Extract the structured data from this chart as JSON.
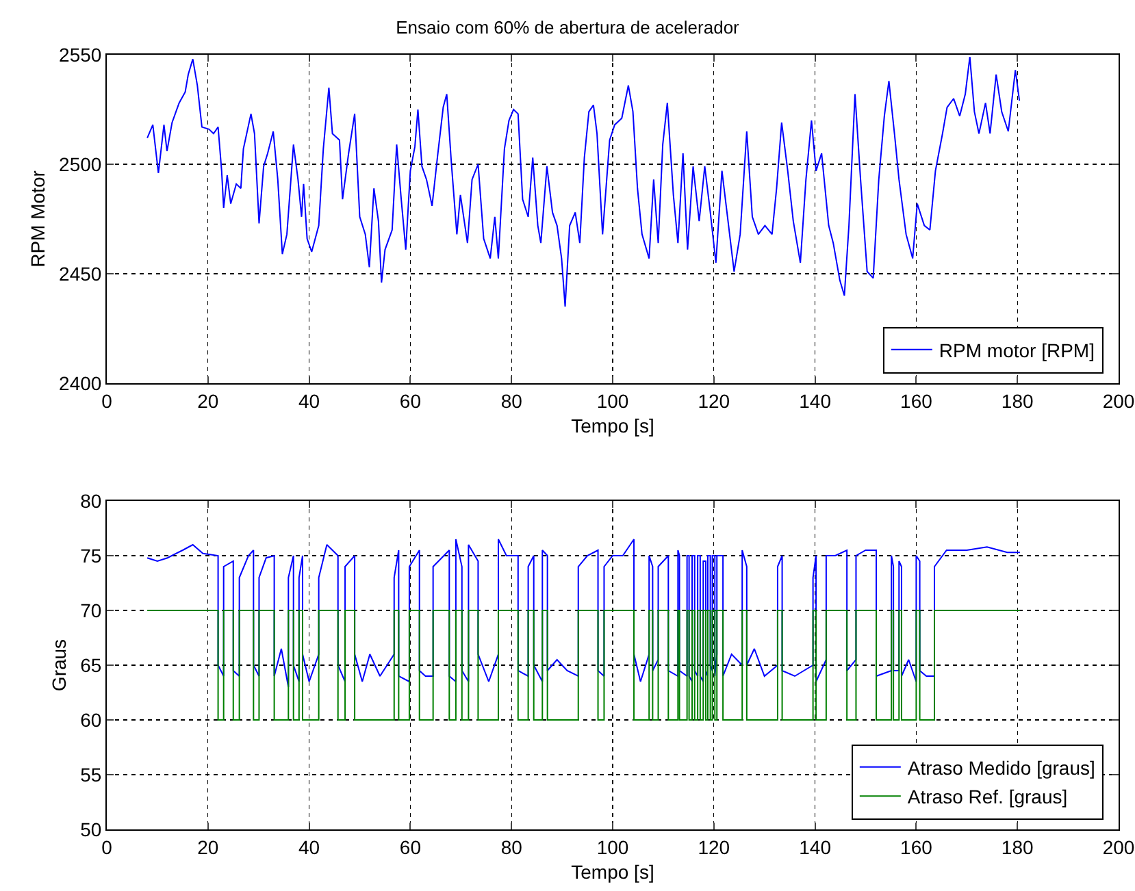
{
  "chart_data": [
    {
      "type": "line",
      "title": "Ensaio com 60% de abertura de acelerador",
      "xlabel": "Tempo [s]",
      "ylabel": "RPM Motor",
      "xlim": [
        0,
        200
      ],
      "xticks": [
        0,
        20,
        40,
        60,
        80,
        100,
        120,
        140,
        160,
        180,
        200
      ],
      "ylim": [
        2400,
        2550
      ],
      "yticks": [
        2400,
        2450,
        2500,
        2550
      ],
      "grid": true,
      "legend": "bottom right",
      "series": [
        {
          "name": "RPM motor [RPM]",
          "color": "#0000ff",
          "x": [
            8.0,
            9.1,
            10.2,
            11.3,
            11.9,
            12.9,
            14.3,
            15.5,
            16.1,
            17.0,
            17.9,
            18.8,
            20.2,
            21.1,
            22,
            22.7,
            23.1,
            23.8,
            24.5,
            25.6,
            26.5,
            27,
            28.5,
            29.2,
            30.1,
            31.0,
            31.8,
            32.9,
            33.8,
            34.7,
            35.6,
            36.9,
            37.8,
            38.5,
            38.9,
            39.6,
            40.5,
            41.9,
            42.8,
            43.9,
            44.6,
            46,
            46.6,
            47.8,
            49,
            50.0,
            51.1,
            51.9,
            52.8,
            53.7,
            54.3,
            55.0,
            56.4,
            57.3,
            58.2,
            59.1,
            60,
            60.9,
            61.5,
            62.3,
            63.2,
            64.3,
            65.4,
            66.5,
            67.2,
            68.1,
            69.2,
            69.9,
            71.3,
            72.2,
            73.4,
            74.5,
            75.8,
            76.7,
            77.4,
            78.6,
            79.5,
            80.4,
            81.3,
            82.2,
            83.3,
            84.2,
            85.2,
            85.8,
            87.0,
            88.1,
            89.0,
            89.9,
            90.6,
            91.5,
            92.6,
            93.5,
            94.4,
            95.3,
            96.2,
            96.9,
            98.0,
            99.4,
            100.4,
            101.8,
            103.1,
            104.0,
            104.9,
            105.8,
            107.2,
            108.1,
            109.0,
            109.9,
            110.8,
            112.0,
            112.9,
            113.9,
            114.8,
            115.9,
            117.1,
            118.2,
            119.3,
            120.4,
            121.6,
            122.7,
            124.0,
            125.2,
            126.5,
            127.6,
            128.8,
            130.1,
            131.5,
            132.4,
            133.4,
            134.6,
            135.7,
            137.1,
            138.2,
            139.3,
            140.2,
            141.3,
            142.7,
            143.6,
            144.9,
            145.8,
            146.7,
            147.9,
            149.0,
            150.3,
            151.5,
            152.6,
            153.7,
            154.6,
            155.7,
            156.6,
            158.0,
            159.3,
            160.2,
            161.6,
            162.7,
            163.8,
            165.2,
            166.1,
            167.4,
            168.6,
            169.7,
            170.6,
            171.5,
            172.4,
            173.7,
            174.6,
            175.8,
            176.9,
            178.2,
            179.6,
            180.4
          ],
          "values": [
            2512,
            2518,
            2496,
            2518,
            2506,
            2519,
            2528,
            2533,
            2541,
            2548,
            2536,
            2517,
            2516,
            2514,
            2517,
            2497,
            2480,
            2495,
            2482,
            2491,
            2489,
            2507,
            2523,
            2514,
            2473,
            2499,
            2505,
            2515,
            2493,
            2459,
            2468,
            2509,
            2493,
            2476,
            2491,
            2466,
            2460,
            2472,
            2507,
            2535,
            2514,
            2511,
            2484,
            2505,
            2523,
            2476,
            2468,
            2453,
            2489,
            2474,
            2446,
            2461,
            2470,
            2509,
            2484,
            2461,
            2497,
            2508,
            2525,
            2499,
            2493,
            2481,
            2504,
            2526,
            2532,
            2501,
            2468,
            2486,
            2464,
            2493,
            2500,
            2466,
            2457,
            2476,
            2457,
            2507,
            2520,
            2525,
            2523,
            2484,
            2476,
            2503,
            2472,
            2464,
            2499,
            2478,
            2472,
            2457,
            2435,
            2472,
            2478,
            2464,
            2503,
            2524,
            2527,
            2514,
            2468,
            2511,
            2518,
            2521,
            2536,
            2524,
            2489,
            2468,
            2457,
            2493,
            2464,
            2509,
            2528,
            2486,
            2464,
            2505,
            2461,
            2499,
            2474,
            2499,
            2478,
            2455,
            2497,
            2476,
            2451,
            2468,
            2515,
            2476,
            2468,
            2472,
            2468,
            2489,
            2519,
            2497,
            2474,
            2455,
            2493,
            2520,
            2497,
            2505,
            2472,
            2464,
            2447,
            2440,
            2472,
            2532,
            2493,
            2451,
            2448,
            2493,
            2522,
            2538,
            2514,
            2493,
            2468,
            2457,
            2482,
            2472,
            2470,
            2497,
            2514,
            2526,
            2530,
            2522,
            2532,
            2549,
            2524,
            2514,
            2528,
            2514,
            2541,
            2524,
            2515,
            2543,
            2529
          ]
        }
      ]
    },
    {
      "type": "line",
      "xlabel": "Tempo [s]",
      "ylabel": "Graus",
      "xlim": [
        0,
        200
      ],
      "xticks": [
        0,
        20,
        40,
        60,
        80,
        100,
        120,
        140,
        160,
        180,
        200
      ],
      "ylim": [
        50,
        80
      ],
      "yticks": [
        50,
        55,
        60,
        65,
        70,
        75,
        80
      ],
      "grid": true,
      "legend": "bottom right",
      "series": [
        {
          "name": "Atraso Medido [graus]",
          "color": "#0000ff",
          "x": [
            8,
            10,
            12,
            15,
            17,
            19,
            22.0,
            22.0,
            23.1,
            23.1,
            25.0,
            25.0,
            26.2,
            26.2,
            28,
            29.0,
            29.0,
            30.1,
            30.1,
            31.5,
            33.1,
            33.1,
            34.5,
            35.9,
            35.9,
            36.9,
            36.9,
            38.0,
            38.0,
            38.7,
            38.7,
            40,
            41.9,
            41.9,
            43.5,
            45.7,
            45.7,
            47.1,
            47.1,
            49.0,
            49.0,
            50.5,
            52,
            54,
            56.8,
            56.8,
            57.7,
            57.7,
            59.8,
            59.8,
            61.8,
            61.8,
            63,
            64.5,
            64.5,
            67.7,
            67.7,
            69.0,
            69.0,
            70.2,
            70.2,
            71.5,
            71.5,
            73.4,
            73.4,
            75.5,
            77.4,
            77.4,
            79,
            81.3,
            81.3,
            83.3,
            83.3,
            84.4,
            84.4,
            86.1,
            86.1,
            87.1,
            87.1,
            89,
            91,
            93.2,
            93.2,
            95,
            97.1,
            97.1,
            98.3,
            98.3,
            100,
            102,
            104.2,
            104.2,
            105.5,
            107.2,
            107.2,
            107.9,
            107.9,
            109.0,
            109.0,
            111.0,
            111.0,
            112.9,
            112.9,
            113.2,
            113.2,
            114.7,
            114.7,
            115.1,
            115.1,
            115.7,
            115.7,
            116.2,
            116.2,
            116.8,
            116.8,
            117.3,
            117.3,
            117.9,
            117.9,
            118.4,
            118.4,
            118.8,
            118.8,
            119.3,
            119.3,
            119.7,
            119.7,
            120.2,
            120.2,
            120.6,
            120.6,
            121.8,
            121.8,
            123.5,
            125.6,
            125.6,
            126.5,
            126.5,
            128,
            130,
            132.6,
            132.6,
            133.5,
            133.5,
            136,
            139.6,
            139.6,
            140.2,
            140.2,
            142.2,
            142.2,
            144,
            146.3,
            146.3,
            148.1,
            148.1,
            150,
            152.1,
            152.1,
            155.1,
            155.1,
            155.5,
            155.5,
            156.6,
            156.6,
            157.1,
            157.1,
            158.5,
            160.0,
            160.0,
            160.7,
            160.7,
            162,
            163.6,
            163.6,
            166,
            170,
            174,
            178,
            180.5
          ],
          "values": [
            74.8,
            74.5,
            74.8,
            75.5,
            76,
            75.2,
            75,
            65,
            64,
            74,
            74.5,
            64.5,
            64,
            73,
            75,
            75.5,
            65,
            64,
            73,
            74.8,
            75,
            64,
            66.5,
            63,
            73,
            75,
            65,
            63.5,
            73,
            75,
            66,
            63.5,
            66,
            73,
            76,
            75,
            65,
            63.5,
            74,
            75,
            66,
            63.5,
            66,
            64,
            66,
            73,
            75.5,
            64,
            63.5,
            74,
            75.5,
            64.5,
            64,
            64,
            74,
            75.5,
            64,
            63.5,
            76.5,
            74,
            64.5,
            63.5,
            76,
            74.5,
            66,
            63.5,
            66,
            76.5,
            75,
            75,
            64.5,
            64,
            74,
            75,
            65,
            63.5,
            75.5,
            75,
            64.5,
            65.5,
            64.5,
            64,
            74,
            75,
            75.5,
            64.5,
            64,
            74,
            75,
            75,
            76.5,
            66,
            63.5,
            66,
            75,
            74,
            64.5,
            65.5,
            74,
            75,
            64.5,
            64,
            75.5,
            75,
            64.5,
            64,
            75,
            75,
            64,
            63.5,
            75,
            75,
            64.5,
            64,
            75,
            75,
            64,
            63.5,
            74.5,
            74.5,
            64.5,
            64,
            75,
            75,
            65,
            64.5,
            75,
            75,
            64,
            66,
            75,
            75,
            64,
            66,
            65,
            75.5,
            74,
            65,
            66.5,
            64,
            65,
            74,
            75,
            64.5,
            64,
            65,
            73,
            75,
            63.5,
            65.5,
            75,
            75,
            75.5,
            64.5,
            65.5,
            75,
            75.5,
            75.5,
            64,
            64.5,
            75,
            74,
            64.5,
            64.5,
            74.5,
            74,
            64,
            65.5,
            63.5,
            75,
            74.5,
            64.5,
            64,
            64,
            74,
            75.5,
            75.5,
            75.8,
            75.3,
            75.3
          ]
        },
        {
          "name": "Atraso Ref. [graus]",
          "type": "step",
          "color": "#008000",
          "x": [
            8,
            22.0,
            23.1,
            25.0,
            26.2,
            29.0,
            30.1,
            33.1,
            35.9,
            36.9,
            38.0,
            38.7,
            41.9,
            45.7,
            47.1,
            49.0,
            56.8,
            57.7,
            59.8,
            61.8,
            64.5,
            67.7,
            69.0,
            70.2,
            71.5,
            73.4,
            77.4,
            81.3,
            83.3,
            84.4,
            86.1,
            87.1,
            93.2,
            97.1,
            98.3,
            104.2,
            107.2,
            107.9,
            109.0,
            111.0,
            112.9,
            113.2,
            114.7,
            115.1,
            115.7,
            116.2,
            116.8,
            117.3,
            117.9,
            118.4,
            118.8,
            119.3,
            119.7,
            120.2,
            120.6,
            121.8,
            125.6,
            126.5,
            132.6,
            133.5,
            139.6,
            140.2,
            142.2,
            146.3,
            148.1,
            152.1,
            155.1,
            155.5,
            156.6,
            157.1,
            160.0,
            160.7,
            163.6,
            180.5
          ],
          "values": [
            70,
            60,
            70,
            60,
            70,
            60,
            70,
            60,
            70,
            60,
            70,
            60,
            70,
            60,
            70,
            60,
            70,
            60,
            70,
            60,
            70,
            60,
            70,
            60,
            70,
            60,
            70,
            60,
            70,
            60,
            70,
            60,
            70,
            60,
            70,
            60,
            70,
            60,
            70,
            60,
            70,
            60,
            70,
            60,
            70,
            60,
            70,
            60,
            70,
            60,
            70,
            60,
            70,
            60,
            70,
            60,
            70,
            60,
            70,
            60,
            70,
            60,
            70,
            60,
            70,
            60,
            70,
            60,
            70,
            60,
            70,
            60,
            70,
            70
          ]
        }
      ]
    }
  ]
}
